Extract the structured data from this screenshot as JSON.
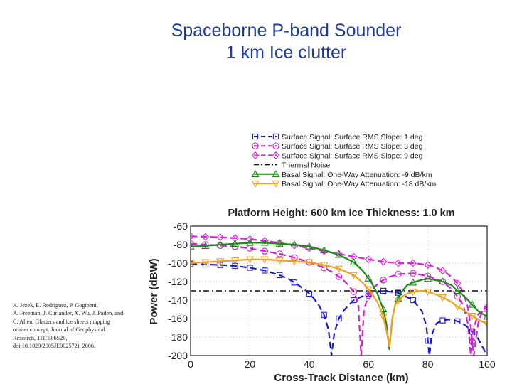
{
  "slide": {
    "title_line1": "Spaceborne P-band Sounder",
    "title_line2": "1 km Ice clutter",
    "citation_lines": [
      "K. Jezek, E. Rodriguez, P. Gogineni,",
      "A. Freeman, J. Curlander, X. Wu, J. Paden, and",
      "C. Allen. Glaciers and ice sheets mapping",
      "orbiter concept. Journal of Geophysical",
      "Research, 111(E06S20,",
      "doi:10.1029/2005JE002572), 2006."
    ]
  },
  "chart_data": {
    "type": "line",
    "title": "Platform Height: 600 km   Ice Thickness: 1.0 km",
    "xlabel": "Cross-Track Distance (km)",
    "ylabel": "Power (dBW)",
    "xlim": [
      0,
      100
    ],
    "ylim": [
      -200,
      -60
    ],
    "xticks": [
      0,
      20,
      40,
      60,
      80,
      100
    ],
    "yticks": [
      -60,
      -80,
      -100,
      -120,
      -140,
      -160,
      -180,
      -200
    ],
    "grid": true,
    "legend_position": "above-plot",
    "series": [
      {
        "name": "Surface Signal: Surface RMS Slope:  1 deg",
        "color": "#1a1ad6",
        "dash": "dashed",
        "marker": "square",
        "x": [
          0,
          5,
          10,
          15,
          20,
          25,
          30,
          33,
          36,
          39,
          41,
          43,
          45,
          46.5,
          47.5,
          48.5,
          50,
          52,
          55,
          60,
          65,
          70,
          75,
          78,
          79.5,
          80.5,
          81.5,
          83,
          85,
          87,
          89,
          91,
          93,
          95,
          97,
          100
        ],
        "y": [
          -101,
          -101.5,
          -102,
          -103,
          -105,
          -108,
          -113,
          -117,
          -123,
          -130,
          -136,
          -144,
          -156,
          -172,
          -200,
          -175,
          -160,
          -150,
          -140,
          -133,
          -130,
          -132,
          -140,
          -152,
          -168,
          -200,
          -176,
          -165,
          -162,
          -161,
          -162,
          -164,
          -168,
          -174,
          -182,
          -200
        ]
      },
      {
        "name": "Surface Signal: Surface RMS Slope:  3 deg",
        "color": "#cc22cc",
        "dash": "dashed",
        "marker": "circle",
        "x": [
          0,
          5,
          10,
          15,
          20,
          25,
          30,
          35,
          40,
          45,
          48,
          51,
          53,
          55,
          56.5,
          57.5,
          58.5,
          60,
          62,
          64,
          67,
          70,
          75,
          80,
          85,
          88,
          90,
          92,
          93.5,
          94.5,
          95.5,
          97,
          100
        ],
        "y": [
          -79,
          -80,
          -81,
          -82,
          -84,
          -87,
          -90,
          -94,
          -99,
          -105,
          -110,
          -117,
          -123,
          -131,
          -143,
          -200,
          -150,
          -135,
          -126,
          -120,
          -115,
          -112,
          -111,
          -114,
          -120,
          -128,
          -136,
          -146,
          -165,
          -200,
          -170,
          -155,
          -150
        ]
      },
      {
        "name": "Surface Signal: Surface RMS Slope:  9 deg",
        "color": "#dd22dd",
        "dash": "dashed",
        "marker": "diamond",
        "x": [
          0,
          5,
          10,
          15,
          20,
          25,
          30,
          35,
          40,
          45,
          50,
          55,
          60,
          65,
          70,
          75,
          80,
          83,
          86,
          88,
          90,
          92,
          93.5,
          94.5,
          95.5,
          97,
          98.5,
          100
        ],
        "y": [
          -71,
          -71.5,
          -72,
          -73,
          -74,
          -76,
          -78,
          -81,
          -84,
          -87,
          -90,
          -93,
          -96,
          -98.5,
          -100,
          -100,
          -102,
          -105,
          -110,
          -115,
          -122,
          -132,
          -148,
          -170,
          -200,
          -165,
          -150,
          -148
        ]
      },
      {
        "name": "Thermal Noise",
        "color": "#111111",
        "dash": "dashdot",
        "marker": "none",
        "x": [
          0,
          100
        ],
        "y": [
          -130,
          -130
        ]
      },
      {
        "name": "Basal Signal: One-Way Attenuation:  -9 dB/km",
        "color": "#1a8a1a",
        "dash": "solid",
        "marker": "triangle-up",
        "x": [
          0,
          5,
          10,
          15,
          20,
          25,
          30,
          35,
          40,
          45,
          50,
          55,
          58,
          61,
          63,
          65,
          66,
          67,
          68,
          69,
          71,
          73,
          75,
          78,
          80,
          82,
          85,
          88,
          90,
          93,
          95,
          97,
          100
        ],
        "y": [
          -82,
          -81.5,
          -80,
          -79,
          -78,
          -78,
          -79,
          -80,
          -82,
          -86,
          -91,
          -99,
          -108,
          -121,
          -133,
          -150,
          -165,
          -193,
          -160,
          -145,
          -132,
          -124,
          -121,
          -118,
          -117,
          -118,
          -120,
          -124,
          -130,
          -138,
          -145,
          -152,
          -158
        ]
      },
      {
        "name": "Basal Signal: One-Way Attenuation:  -18 dB/km",
        "color": "#f0a020",
        "dash": "solid",
        "marker": "triangle-down",
        "x": [
          0,
          5,
          10,
          15,
          20,
          25,
          30,
          35,
          40,
          45,
          50,
          55,
          58,
          61,
          63,
          65,
          66,
          67,
          68,
          69,
          71,
          73,
          75,
          78,
          80,
          82,
          85,
          88,
          90,
          93,
          95,
          97,
          100
        ],
        "y": [
          -100,
          -99,
          -98,
          -97,
          -96,
          -96,
          -97,
          -98,
          -99,
          -102,
          -106,
          -113,
          -121,
          -132,
          -142,
          -158,
          -172,
          -190,
          -160,
          -145,
          -137,
          -133,
          -131,
          -130,
          -131,
          -133,
          -137,
          -142,
          -147,
          -153,
          -157,
          -161,
          -166
        ]
      }
    ]
  }
}
